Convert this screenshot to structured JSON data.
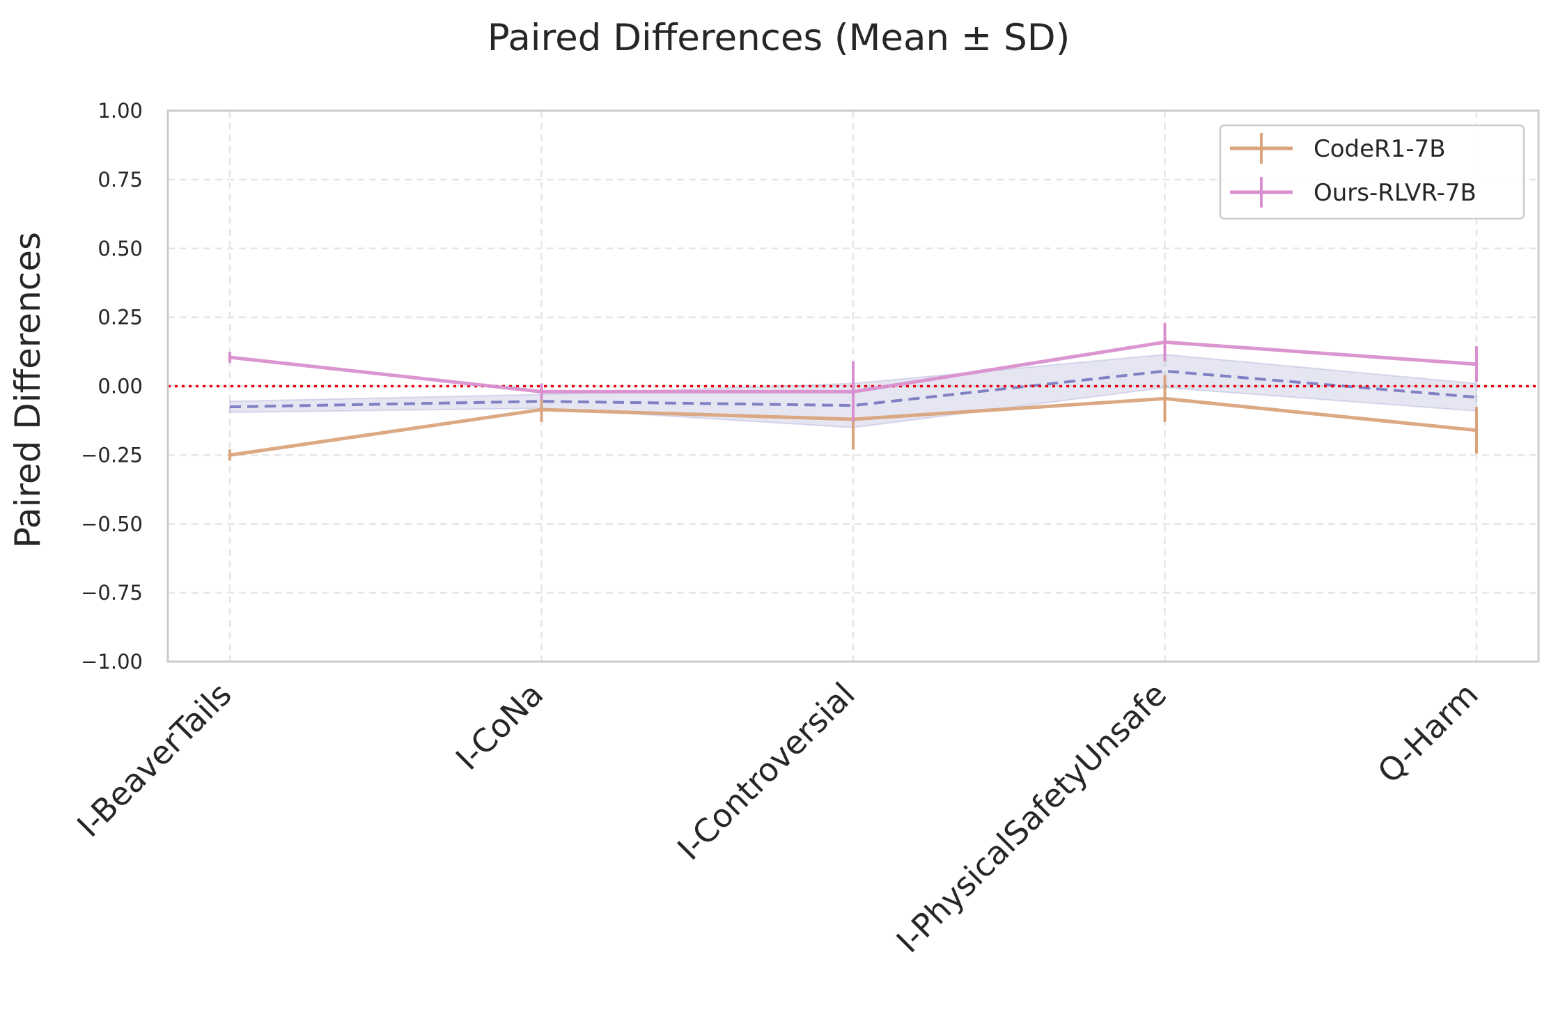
{
  "chart_data": {
    "type": "line",
    "title": "Paired Differences (Mean ± SD)",
    "xlabel": "",
    "ylabel": "Paired Differences",
    "ylim": [
      -1.0,
      1.0
    ],
    "yticks": [
      "−1.00",
      "−0.75",
      "−0.50",
      "−0.25",
      "0.00",
      "0.25",
      "0.50",
      "0.75",
      "1.00"
    ],
    "yticks_values": [
      -1.0,
      -0.75,
      -0.5,
      -0.25,
      0.0,
      0.25,
      0.5,
      0.75,
      1.0
    ],
    "categories": [
      "I-BeaverTails",
      "I-CoNa",
      "I-Controversial",
      "I-PhysicalSafetyUnsafe",
      "Q-Harm"
    ],
    "grid": true,
    "legend_position": "top-right",
    "reference_line": {
      "y": 0.0,
      "color": "#e8000b",
      "style": "dotted"
    },
    "series": [
      {
        "name": "CodeR1-7B",
        "color": "#d9a47c",
        "values": [
          -0.25,
          -0.085,
          -0.12,
          -0.045,
          -0.16
        ],
        "sd": [
          0.02,
          0.045,
          0.11,
          0.085,
          0.085
        ]
      },
      {
        "name": "Ours-RLVR-7B",
        "color": "#d98fce",
        "values": [
          0.105,
          -0.02,
          -0.02,
          0.16,
          0.08
        ],
        "sd": [
          0.02,
          0.03,
          0.11,
          0.07,
          0.065
        ]
      }
    ],
    "mean_band": {
      "color": "#8080c4",
      "values": [
        -0.075,
        -0.055,
        -0.07,
        0.055,
        -0.04
      ],
      "sd": [
        0.02,
        0.025,
        0.08,
        0.06,
        0.05
      ]
    }
  }
}
